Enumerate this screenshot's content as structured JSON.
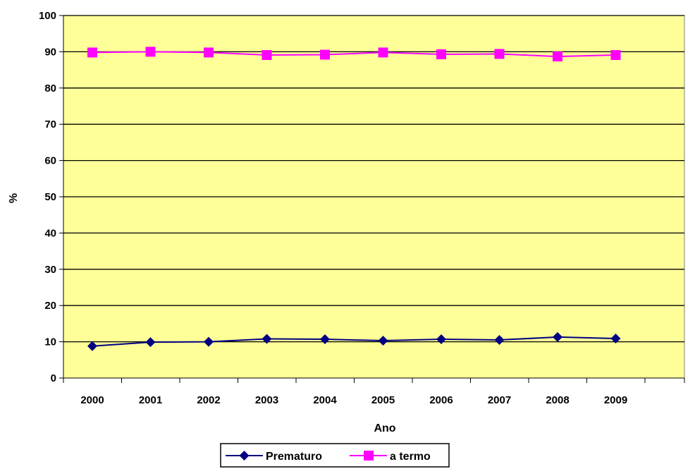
{
  "chart_data": {
    "type": "line",
    "title": "",
    "xlabel": "Ano",
    "ylabel": "%",
    "categories": [
      "2000",
      "2001",
      "2002",
      "2003",
      "2004",
      "2005",
      "2006",
      "2007",
      "2008",
      "2009"
    ],
    "ylim": [
      0,
      100
    ],
    "yticks": [
      "0",
      "10",
      "20",
      "30",
      "40",
      "50",
      "60",
      "70",
      "80",
      "90",
      "100"
    ],
    "grid": true,
    "legend_position": "bottom",
    "plot_background": "#FFFF99",
    "series": [
      {
        "name": "Prematuro",
        "color": "#000080",
        "marker": "diamond",
        "values": [
          8.8,
          9.9,
          10.0,
          10.8,
          10.7,
          10.3,
          10.7,
          10.5,
          11.3,
          10.9
        ]
      },
      {
        "name": "a termo",
        "color": "#FF00FF",
        "marker": "square",
        "values": [
          89.8,
          90.0,
          89.8,
          89.1,
          89.2,
          89.8,
          89.3,
          89.4,
          88.7,
          89.1
        ]
      }
    ]
  }
}
